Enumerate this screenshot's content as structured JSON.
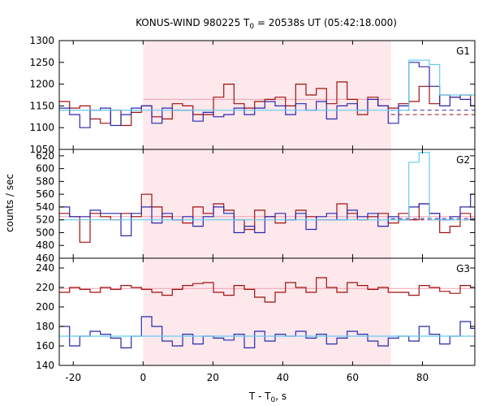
{
  "chart_data": {
    "type": "line",
    "title_main": "KONUS-WIND 980225 T",
    "title_sub": "0",
    "title_rest": " = 20538s UT (05:42:18.000)",
    "xlabel_main": "T - T",
    "xlabel_sub": "0",
    "xlabel_rest": ", s",
    "ylabel": "counts / sec",
    "xlim": [
      -24,
      95
    ],
    "xticks": [
      "-20",
      "0",
      "20",
      "40",
      "60",
      "80"
    ],
    "xtick_values": [
      -20,
      0,
      20,
      40,
      60,
      80
    ],
    "shaded_interval": [
      0,
      71
    ],
    "colors": {
      "shade": "#fde8ec",
      "red": "#a01010",
      "blue": "#2828b0",
      "lightblue": "#66ccee",
      "pink": "#f0a0b0"
    },
    "panels": [
      {
        "name": "G1",
        "ylim": [
          1050,
          1300
        ],
        "yticks": [
          "1050",
          "1100",
          "1150",
          "1200",
          "1250",
          "1300"
        ],
        "ytick_values": [
          1050,
          1100,
          1150,
          1200,
          1250,
          1300
        ],
        "bin_start": -24,
        "bin_width": 2.944,
        "series": [
          {
            "name": "red",
            "color": "#a01010",
            "values": [
              1160,
              1145,
              1150,
              1120,
              1110,
              1140,
              1105,
              1135,
              1150,
              1125,
              1120,
              1155,
              1150,
              1130,
              1130,
              1170,
              1200,
              1155,
              1145,
              1160,
              1165,
              1170,
              1150,
              1200,
              1175,
              1190,
              1155,
              1205,
              1165,
              1130,
              1170,
              1150,
              1145,
              1155,
              1160,
              1195,
              1155,
              1175,
              1170,
              1175,
              1150,
              1145,
              1125,
              1130,
              1130,
              1130,
              1125,
              1095,
              1125,
              1110
            ]
          },
          {
            "name": "blue",
            "color": "#2828b0",
            "values": [
              1145,
              1130,
              1100,
              1140,
              1145,
              1105,
              1130,
              1145,
              1150,
              1110,
              1145,
              1140,
              1140,
              1115,
              1135,
              1125,
              1130,
              1145,
              1130,
              1145,
              1160,
              1150,
              1130,
              1155,
              1140,
              1160,
              1120,
              1150,
              1155,
              1140,
              1165,
              1150,
              1110,
              1150,
              1250,
              1240,
              1195,
              1150,
              1170,
              1165,
              1150,
              1130,
              1145,
              1130,
              1120,
              1140,
              1130,
              1130,
              1145,
              1120
            ]
          },
          {
            "name": "lightblue",
            "color": "#66ccee",
            "values": [
              1140,
              1140,
              1140,
              1140,
              1140,
              1140,
              1140,
              1140,
              1140,
              1140,
              1140,
              1140,
              1140,
              1140,
              1140,
              1140,
              1140,
              1140,
              1140,
              1140,
              1140,
              1140,
              1140,
              1140,
              1140,
              1140,
              1140,
              1140,
              1140,
              1140,
              1140,
              1140,
              1140,
              1140,
              1255,
              1255,
              1245,
              1175,
              1175,
              1175,
              1175,
              1175,
              1140,
              1140,
              1140,
              1140,
              1140,
              1140,
              1140,
              1140
            ]
          }
        ],
        "dashed": [
          {
            "y": 1140,
            "color": "#2828b0",
            "from": 71,
            "to": 95
          },
          {
            "y": 1130,
            "color": "#a01010",
            "from": 71,
            "to": 95
          }
        ],
        "flat": [
          {
            "y": 1165,
            "color": "#f0a0b0",
            "from": 0,
            "to": 71
          },
          {
            "y": 1140,
            "color": "#66ccee",
            "from": -24,
            "to": 0
          }
        ]
      },
      {
        "name": "G2",
        "ylim": [
          460,
          630
        ],
        "yticks": [
          "460",
          "480",
          "500",
          "520",
          "540",
          "560",
          "580",
          "600",
          "620"
        ],
        "ytick_values": [
          460,
          480,
          500,
          520,
          540,
          560,
          580,
          600,
          620
        ],
        "bin_start": -24,
        "bin_width": 2.944,
        "series": [
          {
            "name": "red",
            "color": "#a01010",
            "values": [
              530,
              525,
              485,
              530,
              525,
              520,
              530,
              525,
              560,
              540,
              525,
              520,
              515,
              540,
              530,
              545,
              535,
              520,
              505,
              535,
              525,
              515,
              520,
              535,
              525,
              520,
              520,
              545,
              530,
              520,
              525,
              530,
              515,
              530,
              520,
              545,
              530,
              500,
              510,
              530,
              520,
              545,
              535,
              530,
              530,
              530,
              545,
              540,
              530,
              525
            ]
          },
          {
            "name": "blue",
            "color": "#2828b0",
            "values": [
              540,
              525,
              525,
              535,
              530,
              530,
              495,
              530,
              540,
              515,
              530,
              520,
              525,
              510,
              525,
              540,
              530,
              500,
              510,
              500,
              525,
              530,
              520,
              530,
              505,
              525,
              530,
              520,
              535,
              525,
              530,
              510,
              525,
              520,
              540,
              545,
              530,
              520,
              525,
              540,
              560,
              535,
              520,
              525,
              515,
              520,
              525,
              515,
              495,
              525
            ]
          },
          {
            "name": "lightblue",
            "color": "#66ccee",
            "values": [
              520,
              520,
              520,
              520,
              520,
              520,
              520,
              520,
              520,
              520,
              520,
              520,
              520,
              520,
              520,
              520,
              520,
              520,
              520,
              520,
              520,
              520,
              520,
              520,
              520,
              520,
              520,
              520,
              520,
              520,
              520,
              520,
              520,
              520,
              610,
              625,
              520,
              520,
              520,
              520,
              520,
              520,
              520,
              520,
              520,
              520,
              520,
              520,
              520,
              520
            ]
          }
        ],
        "dashed": [
          {
            "y": 522,
            "color": "#2828b0",
            "from": 71,
            "to": 95
          },
          {
            "y": 520,
            "color": "#a01010",
            "from": 71,
            "to": 95
          }
        ],
        "flat": [
          {
            "y": 525,
            "color": "#f0a0b0",
            "from": -24,
            "to": 95
          }
        ]
      },
      {
        "name": "G3",
        "ylim": [
          140,
          250
        ],
        "yticks": [
          "140",
          "160",
          "180",
          "200",
          "220",
          "240"
        ],
        "ytick_values": [
          140,
          160,
          180,
          200,
          220,
          240
        ],
        "bin_start": -24,
        "bin_width": 2.944,
        "series": [
          {
            "name": "red",
            "color": "#a01010",
            "values": [
              215,
              220,
              218,
              215,
              220,
              218,
              222,
              220,
              218,
              215,
              212,
              218,
              222,
              224,
              225,
              215,
              212,
              222,
              218,
              210,
              205,
              215,
              225,
              220,
              215,
              230,
              220,
              215,
              225,
              222,
              218,
              220,
              215,
              215,
              212,
              222,
              220,
              216,
              214,
              222,
              220,
              215,
              210,
              205,
              212,
              218,
              222,
              226,
              230,
              232
            ]
          },
          {
            "name": "blue",
            "color": "#2828b0",
            "values": [
              180,
              160,
              170,
              175,
              172,
              168,
              158,
              170,
              190,
              180,
              165,
              160,
              172,
              162,
              170,
              168,
              166,
              172,
              158,
              175,
              165,
              172,
              170,
              175,
              168,
              172,
              162,
              168,
              175,
              172,
              165,
              160,
              168,
              170,
              165,
              180,
              172,
              162,
              170,
              185,
              178,
              165,
              170,
              175,
              168,
              160,
              165,
              172,
              180,
              178
            ]
          },
          {
            "name": "lightblue",
            "color": "#66ccee",
            "values": [
              170,
              170,
              170,
              170,
              170,
              170,
              170,
              170,
              170,
              170,
              170,
              170,
              170,
              170,
              170,
              170,
              170,
              170,
              170,
              170,
              170,
              170,
              170,
              170,
              170,
              170,
              170,
              170,
              170,
              170,
              170,
              170,
              170,
              170,
              170,
              170,
              170,
              170,
              170,
              170,
              170,
              170,
              170,
              170,
              170,
              170,
              170,
              170,
              170,
              170
            ]
          }
        ],
        "dashed": [],
        "flat": [
          {
            "y": 219,
            "color": "#f0a0b0",
            "from": -24,
            "to": 95
          },
          {
            "y": 170,
            "color": "#66ccee",
            "from": -24,
            "to": 95
          }
        ]
      }
    ]
  }
}
